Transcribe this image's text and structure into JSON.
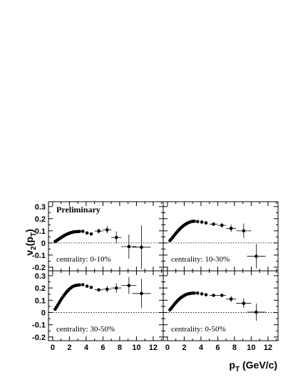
{
  "chart_data": {
    "type": "scatter",
    "preliminary": "Preliminary",
    "ylabel": "v2(pT)",
    "ylabel_parts": {
      "main": "v",
      "sub": "2",
      "open": "(p",
      "sub2": "T",
      "close": ")"
    },
    "xlabel": "pT (GeV/c)",
    "xlabel_parts": {
      "main": "p",
      "sub": "T",
      "rest": " (GeV/c)"
    },
    "xlim": [
      -0.5,
      13.2
    ],
    "ylim": [
      -0.23,
      0.34
    ],
    "xticks": [
      "0",
      "2",
      "4",
      "6",
      "8",
      "10",
      "12"
    ],
    "yticks": [
      "-0.2",
      "-0.1",
      "0",
      "0.1",
      "0.2",
      "0.3"
    ],
    "panels": [
      {
        "label": "centrality: 0-10%",
        "x": [
          0.3,
          0.45,
          0.6,
          0.75,
          0.9,
          1.05,
          1.2,
          1.35,
          1.5,
          1.65,
          1.8,
          1.95,
          2.1,
          2.25,
          2.4,
          2.6,
          2.8,
          3.0,
          3.2,
          3.6,
          4.1,
          4.6,
          5.5,
          6.5,
          7.6,
          9.1,
          10.6
        ],
        "y": [
          0.012,
          0.018,
          0.025,
          0.032,
          0.039,
          0.046,
          0.053,
          0.059,
          0.065,
          0.07,
          0.075,
          0.079,
          0.083,
          0.086,
          0.089,
          0.092,
          0.093,
          0.094,
          0.095,
          0.096,
          0.082,
          0.074,
          0.098,
          0.108,
          0.045,
          -0.03,
          -0.035
        ],
        "yerr": [
          0.002,
          0.002,
          0.002,
          0.002,
          0.002,
          0.002,
          0.002,
          0.002,
          0.002,
          0.002,
          0.002,
          0.002,
          0.002,
          0.002,
          0.003,
          0.003,
          0.003,
          0.003,
          0.004,
          0.005,
          0.008,
          0.01,
          0.02,
          0.03,
          0.05,
          0.1,
          0.18
        ],
        "xerr": [
          0,
          0,
          0,
          0,
          0,
          0,
          0,
          0,
          0,
          0,
          0,
          0,
          0,
          0,
          0,
          0,
          0,
          0,
          0,
          0,
          0,
          0,
          0.5,
          0.5,
          0.6,
          0.9,
          1.1
        ]
      },
      {
        "label": "centrality: 10-30%",
        "x": [
          0.3,
          0.45,
          0.6,
          0.75,
          0.9,
          1.05,
          1.2,
          1.35,
          1.5,
          1.65,
          1.8,
          1.95,
          2.1,
          2.25,
          2.4,
          2.6,
          2.8,
          3.0,
          3.2,
          3.6,
          4.1,
          4.6,
          5.5,
          6.5,
          7.6,
          9.1,
          10.6
        ],
        "y": [
          0.02,
          0.031,
          0.044,
          0.057,
          0.07,
          0.083,
          0.095,
          0.106,
          0.117,
          0.127,
          0.136,
          0.144,
          0.151,
          0.158,
          0.164,
          0.17,
          0.175,
          0.178,
          0.179,
          0.176,
          0.172,
          0.165,
          0.155,
          0.145,
          0.12,
          0.1,
          -0.11
        ],
        "yerr": [
          0.002,
          0.002,
          0.002,
          0.002,
          0.002,
          0.002,
          0.002,
          0.002,
          0.002,
          0.002,
          0.002,
          0.002,
          0.002,
          0.002,
          0.003,
          0.003,
          0.003,
          0.003,
          0.003,
          0.004,
          0.005,
          0.006,
          0.01,
          0.02,
          0.03,
          0.06,
          0.1
        ],
        "xerr": [
          0,
          0,
          0,
          0,
          0,
          0,
          0,
          0,
          0,
          0,
          0,
          0,
          0,
          0,
          0,
          0,
          0,
          0,
          0,
          0,
          0,
          0,
          0.5,
          0.5,
          0.6,
          0.9,
          1.1
        ]
      },
      {
        "label": "centrality: 30-50%",
        "x": [
          0.3,
          0.45,
          0.6,
          0.75,
          0.9,
          1.05,
          1.2,
          1.35,
          1.5,
          1.65,
          1.8,
          1.95,
          2.1,
          2.25,
          2.4,
          2.6,
          2.8,
          3.0,
          3.2,
          3.6,
          4.1,
          4.6,
          5.5,
          6.5,
          7.6,
          9.1,
          10.6
        ],
        "y": [
          0.027,
          0.043,
          0.06,
          0.077,
          0.094,
          0.11,
          0.125,
          0.14,
          0.153,
          0.166,
          0.177,
          0.188,
          0.197,
          0.205,
          0.212,
          0.218,
          0.221,
          0.223,
          0.225,
          0.227,
          0.215,
          0.205,
          0.185,
          0.19,
          0.2,
          0.22,
          0.155
        ],
        "yerr": [
          0.002,
          0.002,
          0.002,
          0.002,
          0.002,
          0.002,
          0.002,
          0.002,
          0.002,
          0.002,
          0.002,
          0.002,
          0.002,
          0.002,
          0.003,
          0.003,
          0.003,
          0.003,
          0.004,
          0.005,
          0.007,
          0.009,
          0.015,
          0.025,
          0.04,
          0.07,
          0.12
        ],
        "xerr": [
          0,
          0,
          0,
          0,
          0,
          0,
          0,
          0,
          0,
          0,
          0,
          0,
          0,
          0,
          0,
          0,
          0,
          0,
          0,
          0,
          0,
          0,
          0.5,
          0.5,
          0.6,
          0.9,
          1.1
        ]
      },
      {
        "label": "centrality: 0-50%",
        "x": [
          0.3,
          0.45,
          0.6,
          0.75,
          0.9,
          1.05,
          1.2,
          1.35,
          1.5,
          1.65,
          1.8,
          1.95,
          2.1,
          2.25,
          2.4,
          2.6,
          2.8,
          3.0,
          3.2,
          3.6,
          4.1,
          4.6,
          5.5,
          6.5,
          7.6,
          9.1,
          10.6
        ],
        "y": [
          0.022,
          0.034,
          0.047,
          0.06,
          0.073,
          0.085,
          0.096,
          0.106,
          0.115,
          0.123,
          0.13,
          0.137,
          0.142,
          0.147,
          0.151,
          0.154,
          0.156,
          0.158,
          0.158,
          0.158,
          0.152,
          0.145,
          0.14,
          0.14,
          0.11,
          0.075,
          0.003
        ],
        "yerr": [
          0.002,
          0.002,
          0.002,
          0.002,
          0.002,
          0.002,
          0.002,
          0.002,
          0.002,
          0.002,
          0.002,
          0.002,
          0.002,
          0.002,
          0.003,
          0.003,
          0.003,
          0.003,
          0.003,
          0.004,
          0.005,
          0.006,
          0.01,
          0.015,
          0.025,
          0.04,
          0.07
        ],
        "xerr": [
          0,
          0,
          0,
          0,
          0,
          0,
          0,
          0,
          0,
          0,
          0,
          0,
          0,
          0,
          0,
          0,
          0,
          0,
          0,
          0,
          0,
          0,
          0.5,
          0.5,
          0.6,
          0.9,
          1.1
        ]
      }
    ]
  }
}
